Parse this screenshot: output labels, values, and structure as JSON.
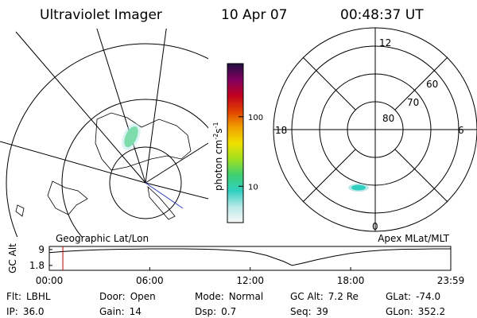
{
  "header": {
    "title": "Ultraviolet Imager",
    "date": "10 Apr 07",
    "time": "00:48:37 UT"
  },
  "left_map": {
    "label": "Geographic Lat/Lon"
  },
  "right_map": {
    "label": "Apex MLat/MLT",
    "mlt_labels": [
      "12",
      "18",
      "6",
      "0"
    ],
    "lat_labels": [
      "80",
      "70",
      "60"
    ]
  },
  "colorbar": {
    "label_parts": [
      "photon cm",
      "-2",
      "s",
      "-1"
    ],
    "scale": "log",
    "lim": [
      3,
      580
    ],
    "ticks": [
      10,
      100
    ],
    "colors": [
      "#f8f8f8",
      "#b8e8e8",
      "#30d0c0",
      "#40d070",
      "#a0e020",
      "#f0e000",
      "#f0a000",
      "#e04000",
      "#c00020",
      "#800060",
      "#201040"
    ]
  },
  "chart_data": {
    "type": "line",
    "ylabel": "GC Alt",
    "x": [
      0,
      1,
      2,
      3,
      4,
      5,
      6,
      7,
      8,
      9,
      10,
      11,
      12,
      13,
      14,
      14.5,
      15,
      16,
      17,
      18,
      19,
      20,
      21,
      22,
      23,
      23.98
    ],
    "series": [
      {
        "name": "GC Alt",
        "color": "#000000",
        "values": [
          7.6,
          8.2,
          8.6,
          8.9,
          9.1,
          9.2,
          9.3,
          9.3,
          9.3,
          9.2,
          9.0,
          8.6,
          8.0,
          6.3,
          3.6,
          1.8,
          2.6,
          4.4,
          6.0,
          7.3,
          8.2,
          8.8,
          9.1,
          9.2,
          9.3,
          9.3
        ]
      }
    ],
    "xlim": [
      0,
      23.98
    ],
    "ylim": [
      -0.4,
      10.4
    ],
    "xticks": [
      {
        "value": 0,
        "label": "00:00"
      },
      {
        "value": 6,
        "label": "06:00"
      },
      {
        "value": 12,
        "label": "12:00"
      },
      {
        "value": 18,
        "label": "18:00"
      },
      {
        "value": 23.98,
        "label": "23:59"
      }
    ],
    "yticks": [
      1.8,
      9.0
    ],
    "marker_x": 0.81,
    "marker_color": "#c00000"
  },
  "info": [
    [
      [
        "Flt:",
        "LBHL"
      ],
      [
        "Door:",
        "Open"
      ],
      [
        "Mode:",
        "Normal"
      ],
      [
        "GC Alt:",
        "7.2 Re"
      ],
      [
        "GLat:",
        "-74.0"
      ]
    ],
    [
      [
        "IP:",
        "36.0"
      ],
      [
        "Gain:",
        "14"
      ],
      [
        "Dsp:",
        "0.7"
      ],
      [
        "Seq:",
        "39"
      ],
      [
        "GLon:",
        "352.2"
      ]
    ]
  ]
}
